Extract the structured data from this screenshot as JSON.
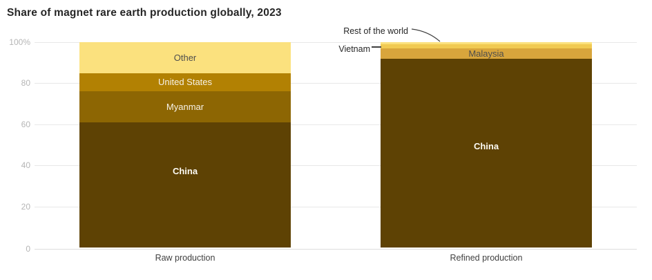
{
  "chart_data": {
    "type": "bar",
    "stacked": true,
    "title": "Share of magnet rare earth production globally, 2023",
    "unit": "%",
    "ylim": [
      0,
      100
    ],
    "grid": true,
    "legend_position": "none",
    "yticks": [
      {
        "value": 100,
        "label": "100%"
      },
      {
        "value": 80,
        "label": "80"
      },
      {
        "value": 60,
        "label": "60"
      },
      {
        "value": 40,
        "label": "40"
      },
      {
        "value": 20,
        "label": "20"
      },
      {
        "value": 0,
        "label": "0"
      }
    ],
    "categories": [
      "Raw production",
      "Refined production"
    ],
    "bars": [
      {
        "category": "Raw production",
        "segments": [
          {
            "name": "China",
            "value": 61,
            "color": "#5e4204",
            "label": "China",
            "label_placement": "inside",
            "label_color": "#fdfbf5",
            "label_weight": "bold"
          },
          {
            "name": "Myanmar",
            "value": 15,
            "color": "#8d6603",
            "label": "Myanmar",
            "label_placement": "inside",
            "label_color": "#f7f2e7",
            "label_weight": "normal"
          },
          {
            "name": "United States",
            "value": 9,
            "color": "#b28103",
            "label": "United States",
            "label_placement": "inside",
            "label_color": "#f7f2e7",
            "label_weight": "normal"
          },
          {
            "name": "Other",
            "value": 15,
            "color": "#fbe17e",
            "label": "Other",
            "label_placement": "inside",
            "label_color": "#4d4d4d",
            "label_weight": "normal"
          }
        ]
      },
      {
        "category": "Refined production",
        "segments": [
          {
            "name": "China",
            "value": 92,
            "color": "#5e4204",
            "label": "China",
            "label_placement": "inside",
            "label_color": "#fdfbf5",
            "label_weight": "bold"
          },
          {
            "name": "Malaysia",
            "value": 5,
            "color": "#d8a53c",
            "label": "Malaysia",
            "label_placement": "inside",
            "label_color": "#4d4d4d",
            "label_weight": "normal"
          },
          {
            "name": "Vietnam",
            "value": 2,
            "color": "#f1ca52",
            "label": "Vietnam",
            "label_placement": "outside"
          },
          {
            "name": "Rest of the world",
            "value": 1,
            "color": "#fbe17e",
            "label": "Rest of the world",
            "label_placement": "outside"
          }
        ]
      }
    ],
    "annotations": [
      {
        "text": "Rest of the world",
        "target": "Rest of the world"
      },
      {
        "text": "Vietnam",
        "target": "Vietnam"
      }
    ],
    "colors": {
      "china": "#5e4204",
      "myanmar": "#8d6603",
      "united_states": "#b28103",
      "malaysia": "#d8a53c",
      "vietnam": "#f1ca52",
      "other_rest_of_world": "#fbe17e",
      "gridline": "#e8e8e8",
      "tick_text": "#b5b5b5",
      "axis_text": "#404040",
      "title_text": "#262626"
    }
  }
}
